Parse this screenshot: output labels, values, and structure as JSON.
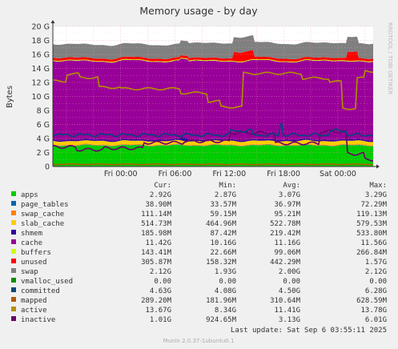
{
  "chart_data": {
    "type": "area",
    "title": "Memory usage - by day",
    "ylabel": "Bytes",
    "watermark": "RRDTOOL / TOBI OETIKER",
    "ylim": [
      0,
      20
    ],
    "y_unit": "G",
    "y_ticks": [
      "0",
      "2 G",
      "4 G",
      "6 G",
      "8 G",
      "10 G",
      "12 G",
      "14 G",
      "16 G",
      "18 G",
      "20 G"
    ],
    "x_ticks": [
      "Fri 00:00",
      "Fri 06:00",
      "Fri 12:00",
      "Fri 18:00",
      "Sat 00:00"
    ],
    "x_hours": [
      0,
      6,
      12,
      18,
      24
    ],
    "x_range_hours": [
      -7.5,
      27.9
    ],
    "grid": true,
    "legend_columns": [
      "Cur:",
      "Min:",
      "Avg:",
      "Max:"
    ],
    "series": [
      {
        "name": "apps",
        "color": "#00cc00",
        "cur": "2.92G",
        "min": "2.87G",
        "avg": "3.07G",
        "max": "3.29G"
      },
      {
        "name": "page_tables",
        "color": "#0066b3",
        "cur": "38.90M",
        "min": "33.57M",
        "avg": "36.97M",
        "max": "72.29M"
      },
      {
        "name": "swap_cache",
        "color": "#ff8000",
        "cur": "111.14M",
        "min": "59.15M",
        "avg": "95.21M",
        "max": "119.13M"
      },
      {
        "name": "slab_cache",
        "color": "#ffcc00",
        "cur": "514.73M",
        "min": "464.96M",
        "avg": "522.78M",
        "max": "579.53M"
      },
      {
        "name": "shmem",
        "color": "#330099",
        "cur": "185.98M",
        "min": "87.42M",
        "avg": "219.42M",
        "max": "533.80M"
      },
      {
        "name": "cache",
        "color": "#990099",
        "cur": "11.42G",
        "min": "10.16G",
        "avg": "11.16G",
        "max": "11.56G"
      },
      {
        "name": "buffers",
        "color": "#ccff00",
        "cur": "143.41M",
        "min": "22.66M",
        "avg": "99.06M",
        "max": "266.84M"
      },
      {
        "name": "unused",
        "color": "#ff0000",
        "cur": "305.87M",
        "min": "158.32M",
        "avg": "442.29M",
        "max": "1.57G"
      },
      {
        "name": "swap",
        "color": "#808080",
        "cur": "2.12G",
        "min": "1.93G",
        "avg": "2.00G",
        "max": "2.12G"
      },
      {
        "name": "vmalloc_used",
        "color": "#008f00",
        "cur": "0.00",
        "min": "0.00",
        "avg": "0.00",
        "max": "0.00"
      },
      {
        "name": "committed",
        "color": "#00487d",
        "cur": "4.63G",
        "min": "4.08G",
        "avg": "4.50G",
        "max": "6.28G"
      },
      {
        "name": "mapped",
        "color": "#b35a00",
        "cur": "289.20M",
        "min": "181.96M",
        "avg": "310.64M",
        "max": "628.59M"
      },
      {
        "name": "active",
        "color": "#b38f00",
        "cur": "13.67G",
        "min": "8.34G",
        "avg": "11.41G",
        "max": "13.78G"
      },
      {
        "name": "inactive",
        "color": "#6b006b",
        "cur": "1.01G",
        "min": "924.65M",
        "avg": "3.13G",
        "max": "6.01G"
      }
    ],
    "last_update": "Last update: Sat Sep  6 03:55:11 2025",
    "footer": "Munin 2.0.37-1ubuntu0.1"
  }
}
